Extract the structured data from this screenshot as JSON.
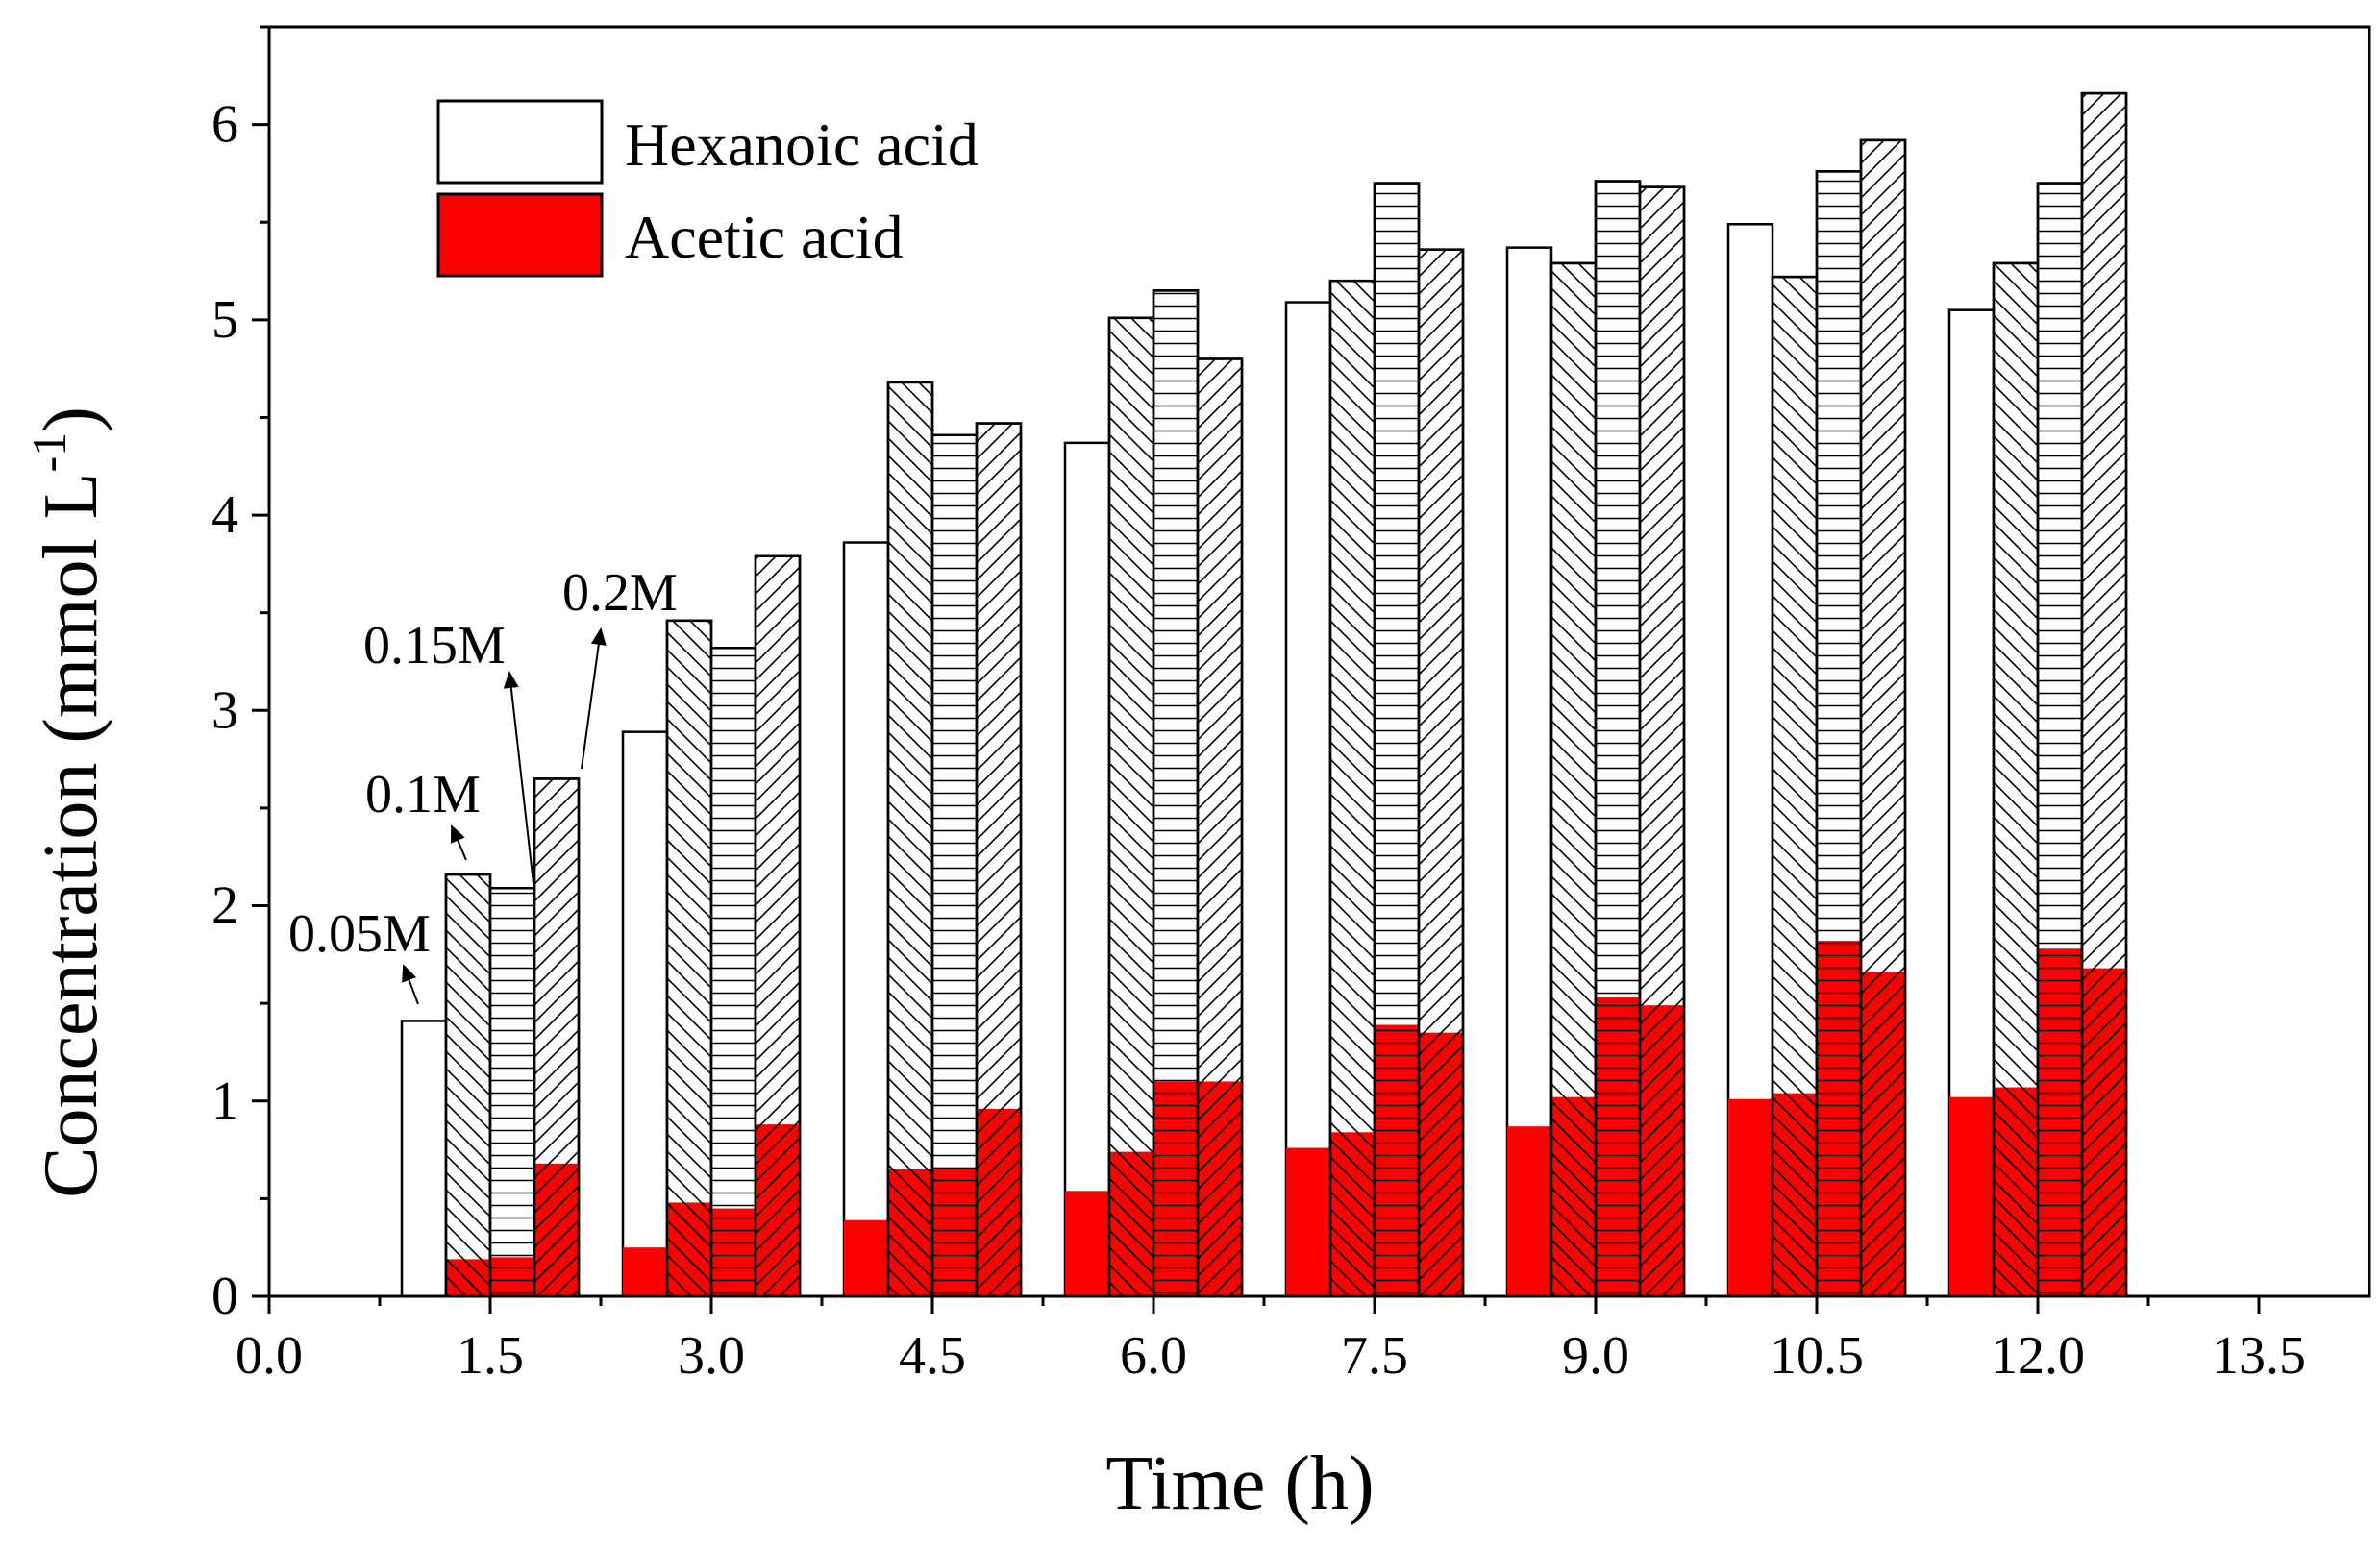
{
  "chart_data": {
    "type": "bar",
    "xlabel": "Time (h)",
    "ylabel": "Concentration (mmol L",
    "ylabel_sup": "-1",
    "ylabel_close": ")",
    "xlim": [
      0,
      14.25
    ],
    "ylim": [
      0,
      6.5
    ],
    "xticks": [
      "0.0",
      "1.5",
      "3.0",
      "4.5",
      "6.0",
      "7.5",
      "9.0",
      "10.5",
      "12.0",
      "13.5"
    ],
    "xtick_values": [
      0,
      1.5,
      3,
      4.5,
      6,
      7.5,
      9,
      10.5,
      12,
      13.5
    ],
    "yticks": [
      "0",
      "1",
      "2",
      "3",
      "4",
      "5",
      "6"
    ],
    "ytick_values": [
      0,
      1,
      2,
      3,
      4,
      5,
      6
    ],
    "legend": {
      "position": "top-left",
      "items": [
        {
          "label": "Hexanoic acid",
          "color": "#ffffff"
        },
        {
          "label": "Acetic acid",
          "color": "#ff0000"
        }
      ]
    },
    "time_points": [
      1.5,
      3.0,
      4.5,
      6.0,
      7.5,
      9.0,
      10.5,
      12.0
    ],
    "groups": [
      {
        "label": "0.05M",
        "pattern": "none",
        "hexanoic_total": [
          1.41,
          2.89,
          3.86,
          4.37,
          5.09,
          5.37,
          5.49,
          5.05
        ],
        "acetic": [
          0,
          0.25,
          0.39,
          0.54,
          0.76,
          0.87,
          1.01,
          1.02
        ]
      },
      {
        "label": "0.1M",
        "pattern": "backslash",
        "hexanoic_total": [
          2.16,
          3.46,
          4.68,
          5.01,
          5.2,
          5.29,
          5.22,
          5.29
        ],
        "acetic": [
          0.19,
          0.48,
          0.65,
          0.74,
          0.84,
          1.02,
          1.04,
          1.07
        ]
      },
      {
        "label": "0.15M",
        "pattern": "horizontal",
        "hexanoic_total": [
          2.09,
          3.32,
          4.41,
          5.15,
          5.7,
          5.71,
          5.76,
          5.7
        ],
        "acetic": [
          0.2,
          0.45,
          0.66,
          1.1,
          1.39,
          1.53,
          1.82,
          1.78
        ]
      },
      {
        "label": "0.2M",
        "pattern": "slash",
        "hexanoic_total": [
          2.65,
          3.79,
          4.47,
          4.8,
          5.36,
          5.68,
          5.92,
          6.16
        ],
        "acetic": [
          0.68,
          0.88,
          0.96,
          1.1,
          1.35,
          1.49,
          1.66,
          1.68
        ]
      }
    ],
    "annotations": [
      "0.05M",
      "0.1M",
      "0.15M",
      "0.2M"
    ]
  }
}
